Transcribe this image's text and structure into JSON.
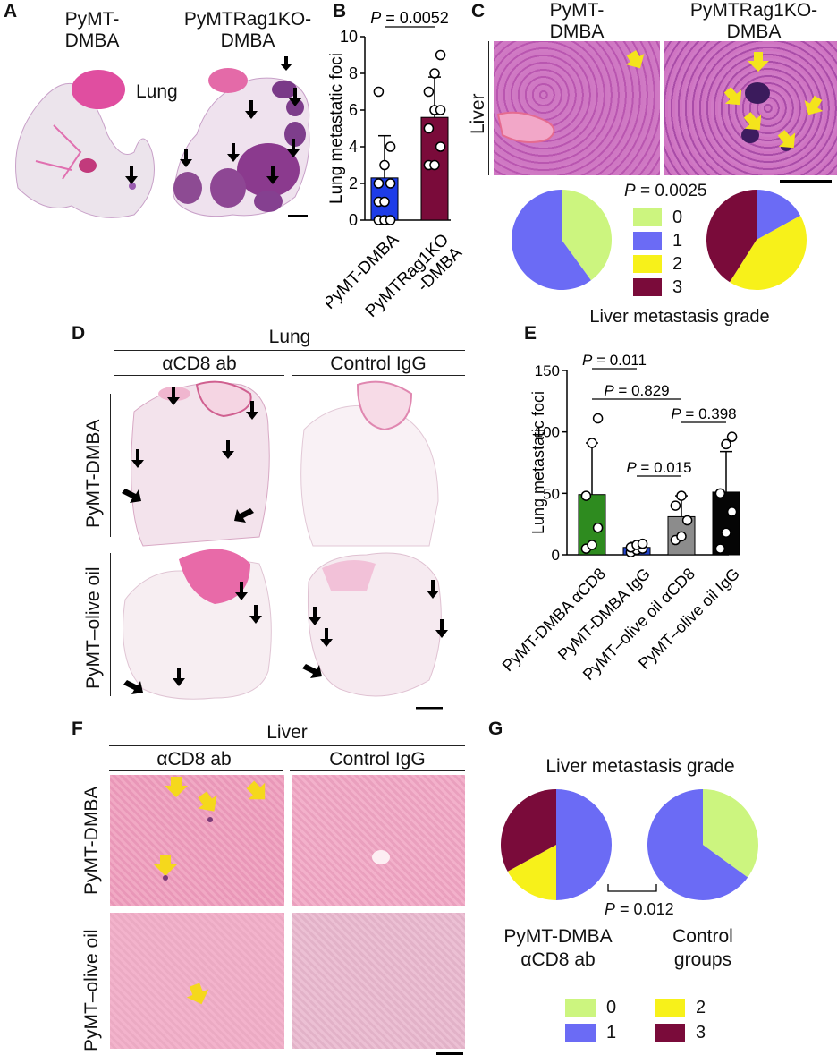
{
  "panel_letters": [
    "A",
    "B",
    "C",
    "D",
    "E",
    "F",
    "G"
  ],
  "panelA": {
    "left_title": "PyMT-\nDMBA",
    "right_title": "PyMTRag1KO-\nDMBA",
    "organ": "Lung"
  },
  "panelC": {
    "left_title": "PyMT-\nDMBA",
    "right_title": "PyMTRag1KO-\nDMBA",
    "row_label": "Liver",
    "p_value": "= 0.0025",
    "legend_title": "Liver metastasis grade",
    "legend": [
      {
        "label": "0",
        "color": "#ccf57f"
      },
      {
        "label": "1",
        "color": "#6b6bf5"
      },
      {
        "label": "2",
        "color": "#f7f11a"
      },
      {
        "label": "3",
        "color": "#7a0b3a"
      }
    ]
  },
  "panelD": {
    "title": "Lung",
    "col1": "αCD8 ab",
    "col2": "Control IgG",
    "row1": "PyMT-DMBA",
    "row2": "PyMT–olive oil"
  },
  "panelF": {
    "title": "Liver",
    "col1": "αCD8 ab",
    "col2": "Control IgG",
    "row1": "PyMT-DMBA",
    "row2": "PyMT–olive oil"
  },
  "panelG": {
    "title": "Liver metastasis grade",
    "left_label": "PyMT-DMBA\nαCD8 ab",
    "right_label": "Control\ngroups",
    "p_value": "= 0.012",
    "legend": [
      {
        "label": "0",
        "color": "#ccf57f"
      },
      {
        "label": "1",
        "color": "#6b6bf5"
      },
      {
        "label": "2",
        "color": "#f7f11a"
      },
      {
        "label": "3",
        "color": "#7a0b3a"
      }
    ]
  },
  "chart_data": [
    {
      "id": "B",
      "type": "bar",
      "ylabel": "Lung metastatic foci",
      "ylim": [
        0,
        10
      ],
      "yticks": [
        0,
        2,
        4,
        6,
        8,
        10
      ],
      "categories": [
        "PyMT-DMBA",
        "PyMTRag1KO\n-DMBA"
      ],
      "values": [
        2.3,
        5.6
      ],
      "errors": [
        2.3,
        2.2
      ],
      "colors": [
        "#1d3ce8",
        "#7a0b3a"
      ],
      "points": [
        [
          0,
          0,
          0,
          1,
          1,
          2,
          2,
          3,
          4,
          7
        ],
        [
          3,
          3,
          4,
          5,
          6,
          6,
          7,
          8,
          9
        ]
      ],
      "comparisons": [
        {
          "from": 0,
          "to": 1,
          "label": "P = 0.0052"
        }
      ]
    },
    {
      "id": "E",
      "type": "bar",
      "ylabel": "Lung metastatic foci",
      "ylim": [
        0,
        150
      ],
      "yticks": [
        0,
        50,
        100,
        150
      ],
      "categories": [
        "PyMT-DMBA αCD8",
        "PyMT-DMBA IgG",
        "PyMT–olive oil αCD8",
        "PyMT–olive oil IgG"
      ],
      "values": [
        49,
        6,
        31,
        51
      ],
      "errors": [
        42,
        4,
        17,
        33
      ],
      "colors": [
        "#2e8b1f",
        "#2244cc",
        "#8c8c8c",
        "#050505"
      ],
      "points": [
        [
          5,
          8,
          22,
          48,
          91,
          111
        ],
        [
          2,
          4,
          5,
          6,
          8,
          9
        ],
        [
          12,
          15,
          28,
          40,
          48
        ],
        [
          5,
          18,
          35,
          50,
          90,
          96
        ]
      ],
      "comparisons": [
        {
          "from": 0,
          "to": 1,
          "label": "P = 0.011"
        },
        {
          "from": 0,
          "to": 2,
          "label": "P = 0.829"
        },
        {
          "from": 1,
          "to": 2,
          "label": "P = 0.015"
        },
        {
          "from": 2,
          "to": 3,
          "label": "P = 0.398"
        }
      ]
    },
    {
      "id": "C-pies",
      "type": "pie",
      "series": [
        {
          "name": "PyMT-\nDMBA",
          "values": [
            40,
            60,
            0,
            0
          ]
        },
        {
          "name": "PyMTRag1KO-\nDMBA",
          "values": [
            0,
            17,
            42,
            41
          ]
        }
      ],
      "categories": [
        "0",
        "1",
        "2",
        "3"
      ],
      "colors": [
        "#ccf57f",
        "#6b6bf5",
        "#f7f11a",
        "#7a0b3a"
      ]
    },
    {
      "id": "G-pies",
      "type": "pie",
      "series": [
        {
          "name": "PyMT-DMBA\nαCD8 ab",
          "values": [
            0,
            50,
            17,
            33
          ]
        },
        {
          "name": "Control\ngroups",
          "values": [
            35,
            65,
            0,
            0
          ]
        }
      ],
      "categories": [
        "0",
        "1",
        "2",
        "3"
      ],
      "colors": [
        "#ccf57f",
        "#6b6bf5",
        "#f7f11a",
        "#7a0b3a"
      ]
    }
  ]
}
